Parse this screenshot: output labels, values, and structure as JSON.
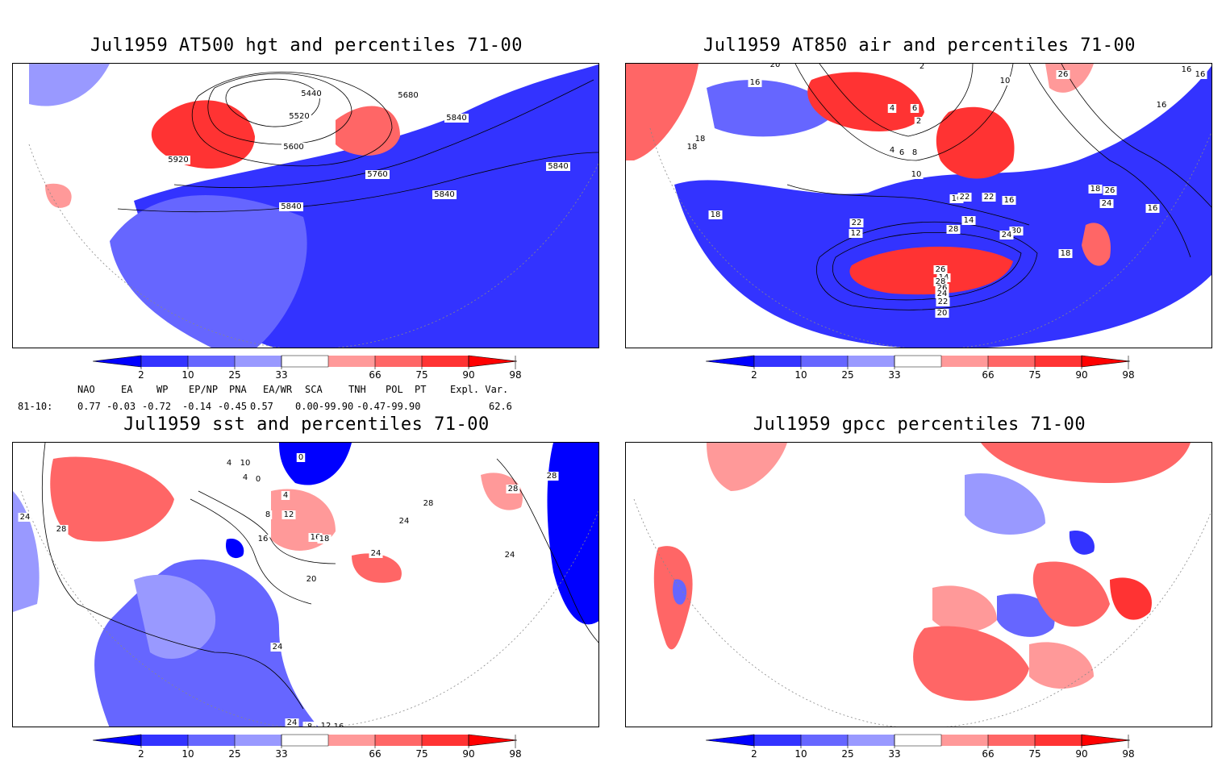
{
  "panels": [
    {
      "id": "hgt",
      "title": "Jul1959 AT500 hgt and percentiles 71-00",
      "contour_labels": [
        "5440",
        "5680",
        "5520",
        "5840",
        "5600",
        "5920",
        "5760",
        "5840",
        "5840",
        "5840"
      ]
    },
    {
      "id": "air",
      "title": "Jul1959 AT850 air and percentiles 71-00",
      "contour_labels": [
        "20",
        "2",
        "16",
        "10",
        "26",
        "16",
        "16",
        "16",
        "4",
        "6",
        "2",
        "18",
        "18",
        "4",
        "6",
        "8",
        "10",
        "16",
        "22",
        "22",
        "16",
        "18",
        "26",
        "24",
        "22",
        "12",
        "14",
        "28",
        "30",
        "24",
        "26",
        "14",
        "28",
        "26",
        "24",
        "22",
        "20",
        "18",
        "16",
        "18"
      ]
    },
    {
      "id": "sst",
      "title": "Jul1959 sst and percentiles 71-00",
      "contour_labels": [
        "0",
        "4",
        "10",
        "4",
        "0",
        "4",
        "8",
        "12",
        "16",
        "24",
        "28",
        "16",
        "18",
        "20",
        "24",
        "24",
        "24",
        "28",
        "28",
        "28",
        "24",
        "24",
        "24",
        "8",
        "12",
        "16"
      ]
    },
    {
      "id": "gpcc",
      "title": "Jul1959 gpcc percentiles 71-00",
      "contour_labels": []
    }
  ],
  "colorbar": {
    "ticks": [
      "2",
      "10",
      "25",
      "33",
      "66",
      "75",
      "90",
      "98"
    ],
    "colors": [
      "#0000ff",
      "#3333ff",
      "#6666ff",
      "#9999ff",
      "#ffffff",
      "#ff9999",
      "#ff6666",
      "#ff3333",
      "#ff0000"
    ]
  },
  "teleconnections": {
    "headers": [
      "NAO",
      "EA",
      "WP",
      "EP/NP",
      "PNA",
      "EA/WR",
      "SCA",
      "TNH",
      "POL",
      "PT",
      "Expl. Var."
    ],
    "row_label": "81-10:",
    "values": [
      "0.77",
      "-0.03",
      "-0.72",
      "-0.14",
      "-0.45",
      "0.57",
      "0.00-99.90",
      "-0.47-99.90",
      "",
      "",
      "62.6"
    ]
  }
}
